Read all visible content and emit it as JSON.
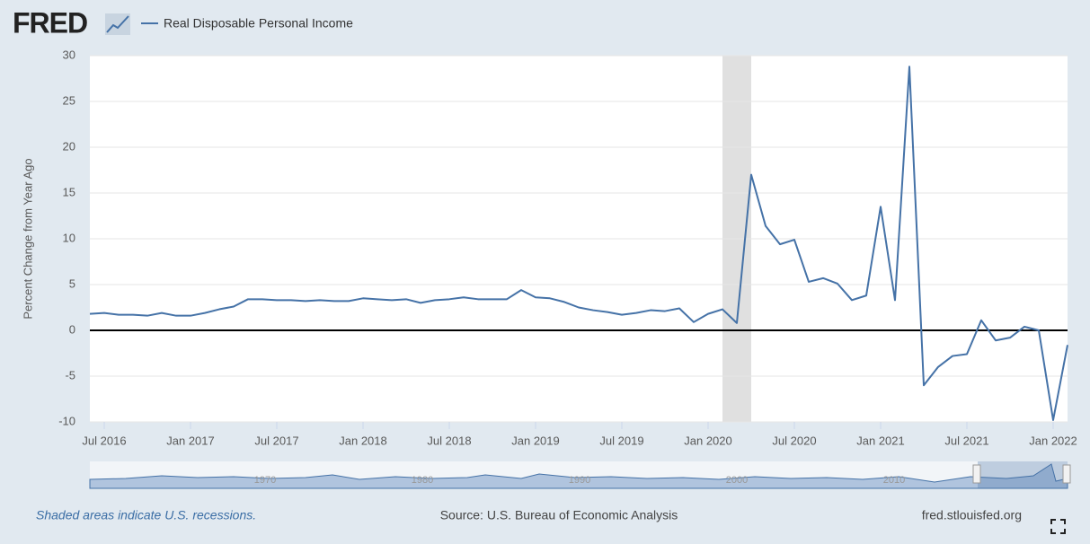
{
  "chart_data": {
    "type": "line",
    "brand": "FRED",
    "ylabel": "Percent Change from Year Ago",
    "series": [
      {
        "name": "Real Disposable Personal Income",
        "color": "#4572a7",
        "values": [
          1.8,
          1.9,
          1.7,
          1.7,
          1.6,
          1.9,
          1.6,
          1.6,
          1.9,
          2.3,
          2.6,
          3.4,
          3.4,
          3.3,
          3.3,
          3.2,
          3.3,
          3.2,
          3.2,
          3.5,
          3.4,
          3.3,
          3.4,
          3.0,
          3.3,
          3.4,
          3.6,
          3.4,
          3.4,
          3.4,
          4.4,
          3.6,
          3.5,
          3.1,
          2.5,
          2.2,
          2.0,
          1.7,
          1.9,
          2.2,
          2.1,
          2.4,
          0.9,
          1.8,
          2.3,
          0.8,
          17.0,
          11.4,
          9.4,
          9.9,
          5.3,
          5.7,
          5.1,
          3.3,
          3.8,
          13.5,
          3.3,
          28.8,
          -6.0,
          -4.0,
          -2.8,
          -2.6,
          1.1,
          -1.1,
          -0.8,
          0.4,
          0.0,
          -9.8,
          -1.6
        ]
      }
    ],
    "x": [
      "2016-06",
      "2016-07",
      "2016-08",
      "2016-09",
      "2016-10",
      "2016-11",
      "2016-12",
      "2017-01",
      "2017-02",
      "2017-03",
      "2017-04",
      "2017-05",
      "2017-06",
      "2017-07",
      "2017-08",
      "2017-09",
      "2017-10",
      "2017-11",
      "2017-12",
      "2018-01",
      "2018-02",
      "2018-03",
      "2018-04",
      "2018-05",
      "2018-06",
      "2018-07",
      "2018-08",
      "2018-09",
      "2018-10",
      "2018-11",
      "2018-12",
      "2019-01",
      "2019-02",
      "2019-03",
      "2019-04",
      "2019-05",
      "2019-06",
      "2019-07",
      "2019-08",
      "2019-09",
      "2019-10",
      "2019-11",
      "2019-12",
      "2020-01",
      "2020-02",
      "2020-03",
      "2020-04",
      "2020-05",
      "2020-06",
      "2020-07",
      "2020-08",
      "2020-09",
      "2020-10",
      "2020-11",
      "2020-12",
      "2021-01",
      "2021-02",
      "2021-03",
      "2021-04",
      "2021-05",
      "2021-06",
      "2021-07",
      "2021-08",
      "2021-09",
      "2021-10",
      "2021-11",
      "2021-12",
      "2022-01",
      "2022-02"
    ],
    "xlim": [
      "2016-06",
      "2022-02"
    ],
    "xticks": [
      {
        "value": "2016-07",
        "label": "Jul 2016"
      },
      {
        "value": "2017-01",
        "label": "Jan 2017"
      },
      {
        "value": "2017-07",
        "label": "Jul 2017"
      },
      {
        "value": "2018-01",
        "label": "Jan 2018"
      },
      {
        "value": "2018-07",
        "label": "Jul 2018"
      },
      {
        "value": "2019-01",
        "label": "Jan 2019"
      },
      {
        "value": "2019-07",
        "label": "Jul 2019"
      },
      {
        "value": "2020-01",
        "label": "Jan 2020"
      },
      {
        "value": "2020-07",
        "label": "Jul 2020"
      },
      {
        "value": "2021-01",
        "label": "Jan 2021"
      },
      {
        "value": "2021-07",
        "label": "Jul 2021"
      },
      {
        "value": "2022-01",
        "label": "Jan 2022"
      }
    ],
    "ylim": [
      -10,
      30
    ],
    "yticks": [
      -10,
      -5,
      0,
      5,
      10,
      15,
      20,
      25,
      30
    ],
    "grid": true,
    "zero_line": true,
    "recessions": [
      {
        "start": "2020-02",
        "end": "2020-04"
      }
    ],
    "navigator_labels": [
      "1970",
      "1980",
      "1990",
      "2000",
      "2010"
    ],
    "footer": {
      "note": "Shaded areas indicate U.S. recessions.",
      "source": "Source: U.S. Bureau of Economic Analysis",
      "site": "fred.stlouisfed.org"
    }
  }
}
